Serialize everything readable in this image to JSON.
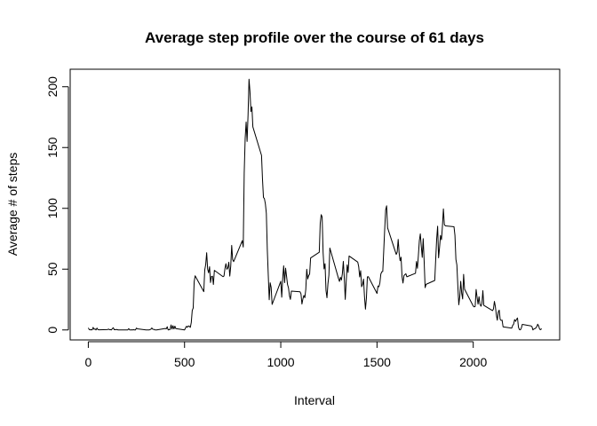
{
  "chart_data": {
    "type": "line",
    "title": "Average step profile over the course of 61 days",
    "x_label": "Interval",
    "y_label": "Average # of steps",
    "x": [
      0,
      5,
      10,
      15,
      20,
      25,
      30,
      35,
      40,
      45,
      50,
      55,
      100,
      105,
      110,
      115,
      120,
      125,
      130,
      135,
      140,
      145,
      150,
      155,
      200,
      205,
      210,
      215,
      220,
      225,
      230,
      235,
      240,
      245,
      250,
      255,
      300,
      305,
      310,
      315,
      320,
      325,
      330,
      335,
      340,
      345,
      350,
      355,
      400,
      405,
      410,
      415,
      420,
      425,
      430,
      435,
      440,
      445,
      450,
      455,
      500,
      505,
      510,
      515,
      520,
      525,
      530,
      535,
      540,
      545,
      550,
      555,
      600,
      605,
      610,
      615,
      620,
      625,
      630,
      635,
      640,
      645,
      650,
      655,
      700,
      705,
      710,
      715,
      720,
      725,
      730,
      735,
      740,
      745,
      750,
      755,
      800,
      805,
      810,
      815,
      820,
      825,
      830,
      835,
      840,
      845,
      850,
      855,
      900,
      905,
      910,
      915,
      920,
      925,
      930,
      935,
      940,
      945,
      950,
      955,
      1000,
      1005,
      1010,
      1015,
      1020,
      1025,
      1030,
      1035,
      1040,
      1045,
      1050,
      1055,
      1100,
      1105,
      1110,
      1115,
      1120,
      1125,
      1130,
      1135,
      1140,
      1145,
      1150,
      1155,
      1200,
      1205,
      1210,
      1215,
      1220,
      1225,
      1230,
      1235,
      1240,
      1245,
      1250,
      1255,
      1300,
      1305,
      1310,
      1315,
      1320,
      1325,
      1330,
      1335,
      1340,
      1345,
      1350,
      1355,
      1400,
      1405,
      1410,
      1415,
      1420,
      1425,
      1430,
      1435,
      1440,
      1445,
      1450,
      1455,
      1500,
      1505,
      1510,
      1515,
      1520,
      1525,
      1530,
      1535,
      1540,
      1545,
      1550,
      1555,
      1600,
      1605,
      1610,
      1615,
      1620,
      1625,
      1630,
      1635,
      1640,
      1645,
      1650,
      1655,
      1700,
      1705,
      1710,
      1715,
      1720,
      1725,
      1730,
      1735,
      1740,
      1745,
      1750,
      1755,
      1800,
      1805,
      1810,
      1815,
      1820,
      1825,
      1830,
      1835,
      1840,
      1845,
      1850,
      1855,
      1900,
      1905,
      1910,
      1915,
      1920,
      1925,
      1930,
      1935,
      1940,
      1945,
      1950,
      1955,
      2000,
      2005,
      2010,
      2015,
      2020,
      2025,
      2030,
      2035,
      2040,
      2045,
      2050,
      2055,
      2100,
      2105,
      2110,
      2115,
      2120,
      2125,
      2130,
      2135,
      2140,
      2145,
      2150,
      2155,
      2200,
      2205,
      2210,
      2215,
      2220,
      2225,
      2230,
      2235,
      2240,
      2245,
      2250,
      2255,
      2300,
      2305,
      2310,
      2315,
      2320,
      2325,
      2330,
      2335,
      2340,
      2345,
      2350,
      2355
    ],
    "series": [
      {
        "color": "#000000",
        "values": [
          1.7,
          0.3,
          0.1,
          0.2,
          0.1,
          2.1,
          0.5,
          0.9,
          0,
          1.5,
          0.3,
          0.1,
          0.3,
          0.7,
          0.2,
          0.3,
          0,
          1.1,
          1.8,
          0.2,
          0.2,
          0.4,
          0.3,
          0,
          0,
          0,
          1.1,
          0,
          0,
          0.1,
          0,
          0.2,
          0,
          0,
          1.5,
          0.9,
          0,
          0,
          0,
          0,
          0.2,
          0.6,
          1.6,
          0.6,
          0.5,
          0.1,
          0,
          0,
          1.2,
          0.9,
          2.6,
          0,
          0.3,
          0.4,
          4.1,
          0.7,
          3.5,
          0.8,
          3.1,
          1.1,
          0,
          1.6,
          3,
          2.2,
          3.3,
          3,
          2.1,
          6.1,
          16,
          18,
          39.5,
          44.5,
          31.5,
          49.3,
          53.8,
          63.5,
          50,
          47,
          52,
          39,
          44,
          44.2,
          37.4,
          49,
          43.8,
          44.4,
          50.5,
          54.5,
          49.9,
          51,
          55.7,
          44.3,
          52.3,
          69.5,
          57.8,
          56.2,
          73.4,
          68.2,
          129,
          157.5,
          171,
          155,
          177,
          206.2,
          195.9,
          179.6,
          183.4,
          167,
          143.5,
          124,
          109,
          108,
          103.7,
          95.9,
          66.2,
          45.2,
          24.8,
          38.8,
          35,
          21,
          40,
          26.9,
          42.4,
          52.7,
          38.9,
          50.8,
          44.3,
          37.4,
          34.7,
          28.3,
          25.1,
          31.9,
          31.4,
          29.7,
          21.3,
          25.5,
          28.4,
          26.5,
          33.4,
          49.9,
          42,
          44.6,
          46,
          59.2,
          63.9,
          87.7,
          94.8,
          92.8,
          63.4,
          50.2,
          54.5,
          32.4,
          26.5,
          37.7,
          45,
          67.3,
          42.3,
          39.9,
          43.3,
          41,
          46.2,
          56.4,
          42.8,
          25.1,
          40,
          53.5,
          47.3,
          60.8,
          55.8,
          52,
          43.6,
          48.7,
          35.5,
          37.5,
          41.8,
          27.5,
          17.1,
          26.1,
          43.6,
          43.8,
          30,
          36.1,
          35.5,
          38.8,
          46,
          47.8,
          48.1,
          65.3,
          82.9,
          98.7,
          102.1,
          84,
          62.1,
          64.1,
          74.5,
          63.2,
          56.9,
          59.8,
          43.9,
          38.6,
          44.7,
          45.5,
          46.2,
          43.7,
          46.6,
          56.3,
          50.7,
          61.2,
          73.4,
          79,
          68.9,
          59.7,
          75.1,
          56.5,
          34.8,
          37.5,
          40.7,
          58,
          74.7,
          85.3,
          59.3,
          67.8,
          77.7,
          74.2,
          85.3,
          99.5,
          86.6,
          85.6,
          84.9,
          77.8,
          58,
          53.4,
          36.3,
          20.7,
          27.4,
          40,
          30.2,
          25.5,
          45.7,
          33.5,
          19.6,
          19,
          19.3,
          33.3,
          26.8,
          21.2,
          27.3,
          21.3,
          19.5,
          21.3,
          32.3,
          20.2,
          15.9,
          17.2,
          23.5,
          19.2,
          12.5,
          8,
          14.7,
          16.3,
          8.7,
          7.8,
          8.1,
          2.6,
          1.5,
          3.7,
          4.8,
          8.5,
          7.1,
          8.7,
          9.8,
          2.2,
          0.3,
          0.1,
          1.6,
          4.6,
          3.3,
          2.8,
          0,
          0.8,
          1,
          1.6,
          2.6,
          4.7,
          3.3,
          0.6,
          0.2,
          1.1
        ]
      }
    ],
    "xlim": [
      -94.2,
      2449.2
    ],
    "xticks": [
      0,
      500,
      1000,
      1500,
      2000
    ],
    "ylim": [
      -8.2,
      214.4
    ],
    "yticks": [
      0,
      50,
      100,
      150,
      200
    ]
  }
}
